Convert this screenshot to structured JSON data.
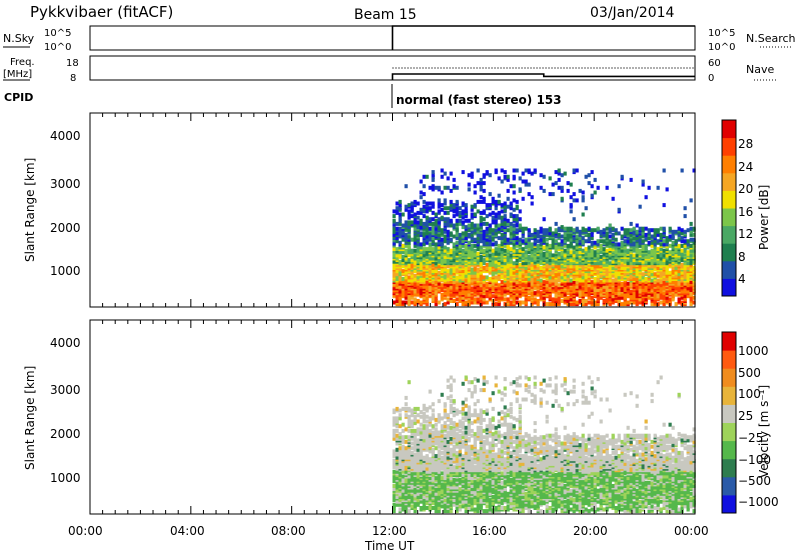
{
  "header": {
    "title": "Pykkvibaer (fitACF)",
    "beam": "Beam 15",
    "date": "03/Jan/2014"
  },
  "top_panels": {
    "nsky_label": "N.Sky",
    "nsky_ticks": [
      "10^5",
      "10^0"
    ],
    "nsearch_label": "N.Search",
    "nsearch_ticks": [
      "10^5",
      "10^0"
    ],
    "freq_label": "Freq.",
    "freq_unit": "[MHz]",
    "freq_ticks": [
      "18",
      "8"
    ],
    "nave_label": "Nave",
    "nave_ticks": [
      "60",
      "0"
    ],
    "cpid_label": "CPID",
    "cpid_text": "normal (fast stereo) 153"
  },
  "colors": {
    "power": [
      "#1010e0",
      "#2050a8",
      "#1f7f4f",
      "#4aa864",
      "#7cc64a",
      "#f0e000",
      "#f5a623",
      "#ff7f00",
      "#ff4000",
      "#e00000"
    ],
    "velocity": [
      "#1010e0",
      "#2a5aa8",
      "#2e7d4f",
      "#55b84b",
      "#9ed35a",
      "#c8c8c0",
      "#e8b43a",
      "#f08c1e",
      "#ff5a10",
      "#e00000"
    ]
  },
  "chart_data": [
    {
      "type": "line",
      "panel": "N.Sky / N.Search",
      "x_range_hours": [
        0,
        24
      ],
      "series": [
        {
          "name": "N.Sky",
          "x": [
            12.0,
            24.0
          ],
          "y": [
            100000,
            100000
          ]
        }
      ]
    },
    {
      "type": "line",
      "panel": "Freq. / Nave",
      "x_range_hours": [
        0,
        24
      ],
      "series": [
        {
          "name": "Freq.",
          "x": [
            12.0,
            18.0,
            18.0,
            24.0
          ],
          "y": [
            10.5,
            10.5,
            9.5,
            9.5
          ]
        },
        {
          "name": "Nave",
          "x": [
            12.0,
            24.0
          ],
          "y": [
            30,
            30
          ]
        }
      ]
    },
    {
      "type": "heatmap",
      "panel": "Power",
      "xlabel": "Time UT",
      "ylabel": "Slant Range [km]",
      "colorbar_label": "Power [dB]",
      "colorbar_ticks": [
        "28",
        "24",
        "20",
        "16",
        "12",
        "8",
        "4"
      ],
      "x_tick_labels": [
        "00:00",
        "04:00",
        "08:00",
        "12:00",
        "16:00",
        "20:00",
        "00:00"
      ],
      "y_tick_labels": [
        "4000",
        "3000",
        "2000",
        "1000"
      ],
      "xlim_hours": [
        0,
        24
      ],
      "ylim": [
        180,
        4500
      ]
    },
    {
      "type": "heatmap",
      "panel": "Velocity",
      "xlabel": "Time UT",
      "ylabel": "Slant Range [km]",
      "colorbar_label": "Velocity [m s⁻¹]",
      "colorbar_ticks": [
        "1000",
        "500",
        "100",
        "25",
        "−25",
        "−100",
        "−500",
        "−1000"
      ],
      "x_tick_labels": [
        "00:00",
        "04:00",
        "08:00",
        "12:00",
        "16:00",
        "20:00",
        "00:00"
      ],
      "y_tick_labels": [
        "4000",
        "3000",
        "2000",
        "1000"
      ],
      "xlim_hours": [
        0,
        24
      ],
      "ylim": [
        180,
        4500
      ]
    }
  ],
  "x_axis": {
    "label": "Time UT",
    "ticks": [
      "00:00",
      "04:00",
      "08:00",
      "12:00",
      "16:00",
      "20:00",
      "00:00"
    ]
  }
}
